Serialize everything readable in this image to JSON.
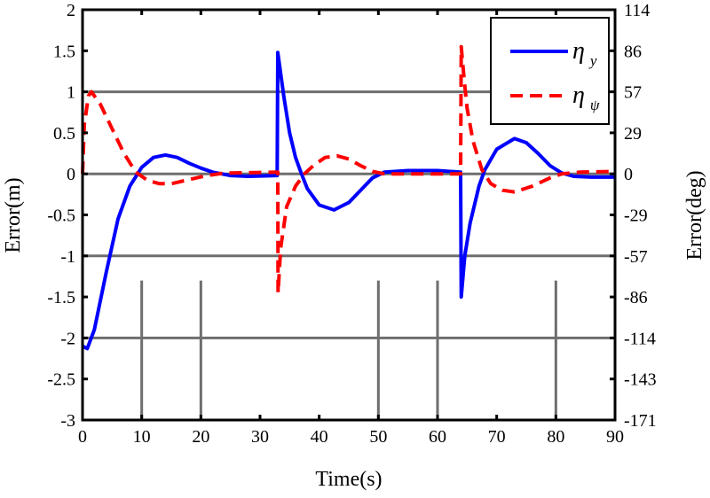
{
  "chart_data": {
    "type": "line",
    "xlabel": "Time(s)",
    "ylabel": "Error(m)",
    "ylabel_right": "Error(deg)",
    "xlim": [
      0,
      90
    ],
    "ylim": [
      -3,
      2
    ],
    "xticks": [
      0,
      10,
      20,
      30,
      40,
      50,
      60,
      70,
      80,
      90
    ],
    "yticks": [
      "2",
      "1.5",
      "1",
      "0.5",
      "0",
      "-0.5",
      "-1",
      "-1.5",
      "-2",
      "-2.5",
      "-3"
    ],
    "yticks_right": [
      "114",
      "86",
      "57",
      "29",
      "0",
      "-29",
      "-57",
      "-86",
      "-114",
      "-143",
      "-171"
    ],
    "grid_h": [
      1,
      0,
      -1,
      -2
    ],
    "grid_v_partial": {
      "x": [
        10,
        20,
        50,
        60,
        80
      ],
      "y_range": [
        -3,
        -1.3
      ]
    },
    "legend_position": "top-right",
    "series": [
      {
        "name": "η",
        "subscript": "y",
        "color": "#0000ff",
        "style": "solid",
        "points": [
          [
            0,
            -2.1
          ],
          [
            0.8,
            -2.13
          ],
          [
            2,
            -1.9
          ],
          [
            4,
            -1.2
          ],
          [
            6,
            -0.55
          ],
          [
            8,
            -0.15
          ],
          [
            10,
            0.08
          ],
          [
            12,
            0.2
          ],
          [
            14,
            0.23
          ],
          [
            16,
            0.2
          ],
          [
            18,
            0.13
          ],
          [
            20,
            0.07
          ],
          [
            22,
            0.02
          ],
          [
            25,
            -0.02
          ],
          [
            28,
            -0.03
          ],
          [
            32.9,
            -0.02
          ],
          [
            33,
            1.48
          ],
          [
            34,
            0.95
          ],
          [
            35,
            0.5
          ],
          [
            36,
            0.2
          ],
          [
            37,
            0
          ],
          [
            38,
            -0.18
          ],
          [
            40,
            -0.38
          ],
          [
            42.5,
            -0.44
          ],
          [
            45,
            -0.35
          ],
          [
            47,
            -0.2
          ],
          [
            49,
            -0.05
          ],
          [
            51,
            0.02
          ],
          [
            55,
            0.04
          ],
          [
            60,
            0.04
          ],
          [
            63.9,
            0.02
          ],
          [
            64,
            -1.5
          ],
          [
            64.6,
            -1.0
          ],
          [
            65.5,
            -0.6
          ],
          [
            67,
            -0.15
          ],
          [
            68,
            0.05
          ],
          [
            70,
            0.3
          ],
          [
            73,
            0.43
          ],
          [
            75,
            0.38
          ],
          [
            77,
            0.25
          ],
          [
            79,
            0.1
          ],
          [
            81,
            0.01
          ],
          [
            83,
            -0.03
          ],
          [
            86,
            -0.04
          ],
          [
            90,
            -0.04
          ]
        ]
      },
      {
        "name": "η",
        "subscript": "ψ",
        "color": "#ff0000",
        "style": "dashed",
        "points": [
          [
            0,
            0
          ],
          [
            0.3,
            0.6
          ],
          [
            1,
            0.95
          ],
          [
            1.5,
            1.0
          ],
          [
            3,
            0.85
          ],
          [
            5,
            0.55
          ],
          [
            7,
            0.25
          ],
          [
            9,
            0.02
          ],
          [
            11,
            -0.08
          ],
          [
            13,
            -0.12
          ],
          [
            15,
            -0.12
          ],
          [
            18,
            -0.07
          ],
          [
            21,
            -0.02
          ],
          [
            24,
            0.01
          ],
          [
            33,
            0.02
          ],
          [
            33.05,
            -1.45
          ],
          [
            33.5,
            -0.9
          ],
          [
            34.5,
            -0.4
          ],
          [
            36,
            -0.15
          ],
          [
            37.5,
            0.0
          ],
          [
            39,
            0.1
          ],
          [
            41,
            0.2
          ],
          [
            43,
            0.22
          ],
          [
            45,
            0.18
          ],
          [
            47,
            0.1
          ],
          [
            49,
            0.03
          ],
          [
            51,
            0.0
          ],
          [
            63.9,
            0.0
          ],
          [
            64,
            1.55
          ],
          [
            64.5,
            1.15
          ],
          [
            65,
            0.8
          ],
          [
            66,
            0.4
          ],
          [
            67.5,
            0.05
          ],
          [
            69,
            -0.12
          ],
          [
            71,
            -0.2
          ],
          [
            73,
            -0.22
          ],
          [
            76,
            -0.15
          ],
          [
            79,
            -0.05
          ],
          [
            81,
            0
          ],
          [
            84,
            0.02
          ],
          [
            90,
            0.03
          ]
        ]
      }
    ]
  }
}
